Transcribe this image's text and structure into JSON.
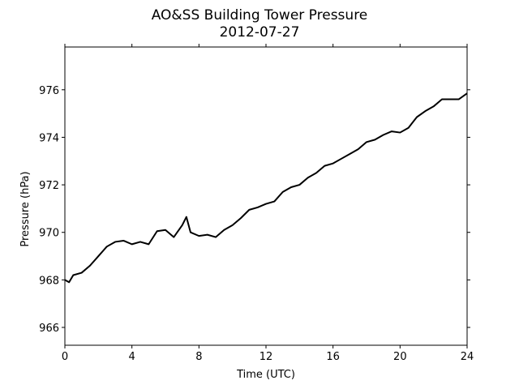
{
  "chart_data": {
    "type": "line",
    "title": "AO&SS Building Tower Pressure",
    "subtitle": "2012-07-27",
    "x_label": "Time (UTC)",
    "y_label": "Pressure (hPa)",
    "x": [
      0,
      0.25,
      0.5,
      1,
      1.5,
      2,
      2.5,
      3,
      3.5,
      4,
      4.5,
      5,
      5.5,
      6,
      6.5,
      7,
      7.25,
      7.5,
      8,
      8.5,
      9,
      9.5,
      10,
      10.5,
      11,
      11.5,
      12,
      12.5,
      13,
      13.5,
      14,
      14.5,
      15,
      15.5,
      16,
      16.5,
      17,
      17.5,
      18,
      18.5,
      19,
      19.5,
      20,
      20.5,
      21,
      21.5,
      22,
      22.5,
      23,
      23.5,
      24
    ],
    "series": [
      {
        "name": "Pressure",
        "color": "#000000",
        "values": [
          968.0,
          967.9,
          968.2,
          968.3,
          968.6,
          969.0,
          969.4,
          969.6,
          969.65,
          969.5,
          969.6,
          969.5,
          970.05,
          970.1,
          969.8,
          970.3,
          970.65,
          970.0,
          969.85,
          969.9,
          969.8,
          970.1,
          970.3,
          970.6,
          970.95,
          971.05,
          971.2,
          971.3,
          971.7,
          971.9,
          972.0,
          972.3,
          972.5,
          972.8,
          972.9,
          973.1,
          973.3,
          973.5,
          973.8,
          973.9,
          974.1,
          974.25,
          974.2,
          974.4,
          974.85,
          975.1,
          975.3,
          975.6,
          975.6,
          975.6,
          975.85
        ]
      }
    ],
    "xlim": [
      0,
      24
    ],
    "xticks": [
      0,
      4,
      8,
      12,
      16,
      20,
      24
    ],
    "ylim": [
      965.25,
      977.8
    ],
    "yticks": [
      966,
      968,
      970,
      972,
      974,
      976
    ],
    "grid": false
  }
}
